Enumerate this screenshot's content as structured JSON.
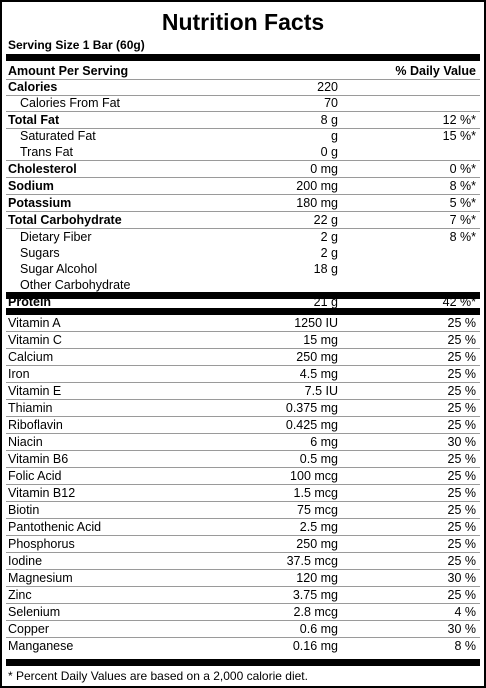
{
  "title": "Nutrition Facts",
  "serving_size": "Serving Size 1 Bar (60g)",
  "header": {
    "amount_per_serving": "Amount Per Serving",
    "daily_value": "% Daily Value"
  },
  "macros": [
    {
      "name": "Calories",
      "amount": "220",
      "dv": "",
      "bold": true,
      "indent": false
    },
    {
      "name": "Calories From Fat",
      "amount": "70",
      "dv": "",
      "bold": false,
      "indent": true
    },
    {
      "name": "Total Fat",
      "amount": "8 g",
      "dv": "12 %*",
      "bold": true,
      "indent": false
    },
    {
      "name": "Saturated Fat",
      "amount": "g",
      "dv": "15 %*",
      "bold": false,
      "indent": true
    },
    {
      "name": "Trans Fat",
      "amount": "0 g",
      "dv": "",
      "bold": false,
      "indent": true
    },
    {
      "name": "Cholesterol",
      "amount": "0 mg",
      "dv": "0 %*",
      "bold": true,
      "indent": false
    },
    {
      "name": "Sodium",
      "amount": "200 mg",
      "dv": "8 %*",
      "bold": true,
      "indent": false
    },
    {
      "name": "Potassium",
      "amount": "180 mg",
      "dv": "5 %*",
      "bold": true,
      "indent": false
    },
    {
      "name": "Total Carbohydrate",
      "amount": "22 g",
      "dv": "7 %*",
      "bold": true,
      "indent": false
    },
    {
      "name": "Dietary Fiber",
      "amount": "2 g",
      "dv": "8 %*",
      "bold": false,
      "indent": true
    },
    {
      "name": "Sugars",
      "amount": "2 g",
      "dv": "",
      "bold": false,
      "indent": true
    },
    {
      "name": "Sugar Alcohol",
      "amount": "18 g",
      "dv": "",
      "bold": false,
      "indent": true
    },
    {
      "name": "Other Carbohydrate",
      "amount": "",
      "dv": "",
      "bold": false,
      "indent": true
    }
  ],
  "protein": {
    "name": "Protein",
    "amount": "21 g",
    "dv": "42 %*"
  },
  "vitamins": [
    {
      "name": "Vitamin A",
      "amount": "1250 IU",
      "dv": "25 %"
    },
    {
      "name": "Vitamin C",
      "amount": "15 mg",
      "dv": "25 %"
    },
    {
      "name": "Calcium",
      "amount": "250 mg",
      "dv": "25 %"
    },
    {
      "name": "Iron",
      "amount": "4.5 mg",
      "dv": "25 %"
    },
    {
      "name": "Vitamin E",
      "amount": "7.5 IU",
      "dv": "25 %"
    },
    {
      "name": "Thiamin",
      "amount": "0.375 mg",
      "dv": "25 %"
    },
    {
      "name": "Riboflavin",
      "amount": "0.425 mg",
      "dv": "25 %"
    },
    {
      "name": "Niacin",
      "amount": "6 mg",
      "dv": "30 %"
    },
    {
      "name": "Vitamin B6",
      "amount": "0.5 mg",
      "dv": "25 %"
    },
    {
      "name": "Folic Acid",
      "amount": "100 mcg",
      "dv": "25 %"
    },
    {
      "name": "Vitamin B12",
      "amount": "1.5 mcg",
      "dv": "25 %"
    },
    {
      "name": "Biotin",
      "amount": "75 mcg",
      "dv": "25 %"
    },
    {
      "name": "Pantothenic Acid",
      "amount": "2.5 mg",
      "dv": "25 %"
    },
    {
      "name": "Phosphorus",
      "amount": "250 mg",
      "dv": "25 %"
    },
    {
      "name": "Iodine",
      "amount": "37.5 mcg",
      "dv": "25 %"
    },
    {
      "name": "Magnesium",
      "amount": "120 mg",
      "dv": "30 %"
    },
    {
      "name": "Zinc",
      "amount": "3.75 mg",
      "dv": "25 %"
    },
    {
      "name": "Selenium",
      "amount": "2.8 mcg",
      "dv": "4 %"
    },
    {
      "name": "Copper",
      "amount": "0.6 mg",
      "dv": "30 %"
    },
    {
      "name": "Manganese",
      "amount": "0.16 mg",
      "dv": "8 %"
    }
  ],
  "footnote": "* Percent Daily Values are based on a 2,000 calorie diet."
}
